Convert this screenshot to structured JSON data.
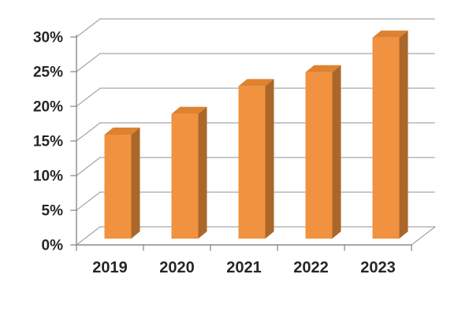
{
  "chart_data": {
    "type": "bar",
    "variant": "3d-column",
    "categories": [
      "2019",
      "2020",
      "2021",
      "2022",
      "2023"
    ],
    "values": [
      15,
      18,
      22,
      24,
      29
    ],
    "value_unit": "%",
    "ytick_labels": [
      "0%",
      "5%",
      "10%",
      "15%",
      "20%",
      "25%",
      "30%"
    ],
    "ytick_values": [
      0,
      5,
      10,
      15,
      20,
      25,
      30
    ],
    "ylim": [
      0,
      30
    ],
    "grid": true,
    "legend_visible": false,
    "colors": {
      "bar_front": "#F0923F",
      "bar_top": "#DE8230",
      "bar_side": "#AB672A",
      "gridline": "#A6A6A6",
      "axis": "#8A8A8A",
      "label_text": "#262626",
      "background": "#FFFFFF"
    }
  }
}
